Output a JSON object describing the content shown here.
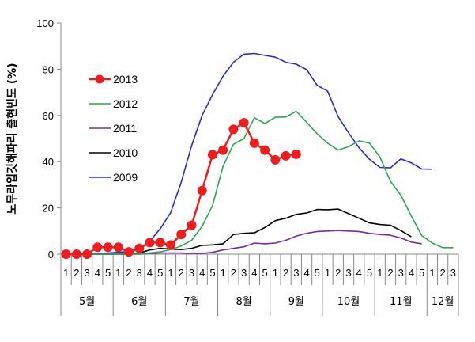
{
  "chart_data": {
    "type": "line",
    "title": "",
    "xlabel": "",
    "ylabel": "노무라입깃해파리 출현빈도 (%)",
    "ylim": [
      0,
      100
    ],
    "yticks": [
      0,
      20,
      40,
      60,
      80,
      100
    ],
    "grid": false,
    "legend_position": "left",
    "x_labels": [
      "1",
      "2",
      "3",
      "4",
      "5",
      "1",
      "2",
      "3",
      "4",
      "5",
      "1",
      "2",
      "3",
      "4",
      "5",
      "1",
      "2",
      "3",
      "4",
      "5",
      "1",
      "2",
      "3",
      "4",
      "5",
      "1",
      "2",
      "3",
      "4",
      "5",
      "1",
      "2",
      "3",
      "4",
      "5",
      "1",
      "2",
      "3"
    ],
    "months": [
      {
        "label": "5월",
        "start": 0,
        "count": 5
      },
      {
        "label": "6월",
        "start": 5,
        "count": 5
      },
      {
        "label": "7월",
        "start": 10,
        "count": 5
      },
      {
        "label": "8월",
        "start": 15,
        "count": 5
      },
      {
        "label": "9월",
        "start": 20,
        "count": 5
      },
      {
        "label": "10월",
        "start": 25,
        "count": 5
      },
      {
        "label": "11월",
        "start": 30,
        "count": 5
      },
      {
        "label": "12월",
        "start": 35,
        "count": 3
      }
    ],
    "series": [
      {
        "name": "2009",
        "color": "#2b2bcc",
        "marker": false,
        "values": [
          0,
          0,
          0,
          0.3,
          0.5,
          0.8,
          1.2,
          2.5,
          5.5,
          11,
          18,
          31,
          47,
          60,
          69,
          77,
          83,
          86.5,
          86.8,
          86,
          85.2,
          83,
          82.2,
          79.8,
          73,
          70.5,
          59.5,
          52.5,
          46,
          41,
          37.5,
          37.3,
          41.2,
          39.5,
          36.8,
          36.7,
          null,
          null
        ]
      },
      {
        "name": "2010",
        "color": "#000000",
        "marker": false,
        "values": [
          0,
          0,
          0,
          0,
          0,
          0,
          0,
          0.5,
          1.8,
          2.5,
          2.2,
          2,
          2.5,
          3.8,
          4,
          4.5,
          8.5,
          9,
          9.2,
          11.5,
          14.5,
          15.5,
          17.2,
          17.8,
          19.3,
          19.2,
          19.5,
          17.5,
          15.5,
          13.5,
          12.8,
          12.5,
          10.2,
          7.5,
          null,
          null,
          null,
          null
        ]
      },
      {
        "name": "2011",
        "color": "#7a2d99",
        "marker": false,
        "values": [
          0,
          0,
          0,
          0,
          0,
          0,
          0,
          0,
          0.3,
          0.5,
          0.5,
          0.5,
          0.3,
          0.3,
          0.8,
          1.8,
          2.5,
          3.2,
          4.8,
          4.5,
          4.8,
          6,
          7.8,
          9,
          9.8,
          10,
          10.2,
          10,
          9.8,
          9,
          8.5,
          8.2,
          7,
          5.2,
          4.5,
          null,
          null,
          null
        ]
      },
      {
        "name": "2012",
        "color": "#2ba84a",
        "marker": false,
        "values": [
          0,
          0,
          0,
          0,
          0,
          0,
          0,
          0,
          0.5,
          1,
          2,
          3.5,
          6,
          12,
          21,
          38,
          47.5,
          50,
          59,
          56.5,
          59.2,
          59.3,
          61.8,
          57,
          52,
          48,
          45,
          46.5,
          49,
          48,
          42,
          31.5,
          25.5,
          16.5,
          8,
          4.8,
          2.8,
          2.8
        ]
      },
      {
        "name": "2013",
        "color": "#ee1c1c",
        "marker": true,
        "values": [
          0,
          0,
          0,
          3,
          3,
          3,
          1,
          2.5,
          5,
          5,
          4,
          8.5,
          12.5,
          27.5,
          43,
          45,
          54,
          56.8,
          48,
          45,
          40.8,
          42.5,
          43.2,
          null,
          null,
          null,
          null,
          null,
          null,
          null,
          null,
          null,
          null,
          null,
          null,
          null,
          null,
          null
        ]
      }
    ]
  }
}
